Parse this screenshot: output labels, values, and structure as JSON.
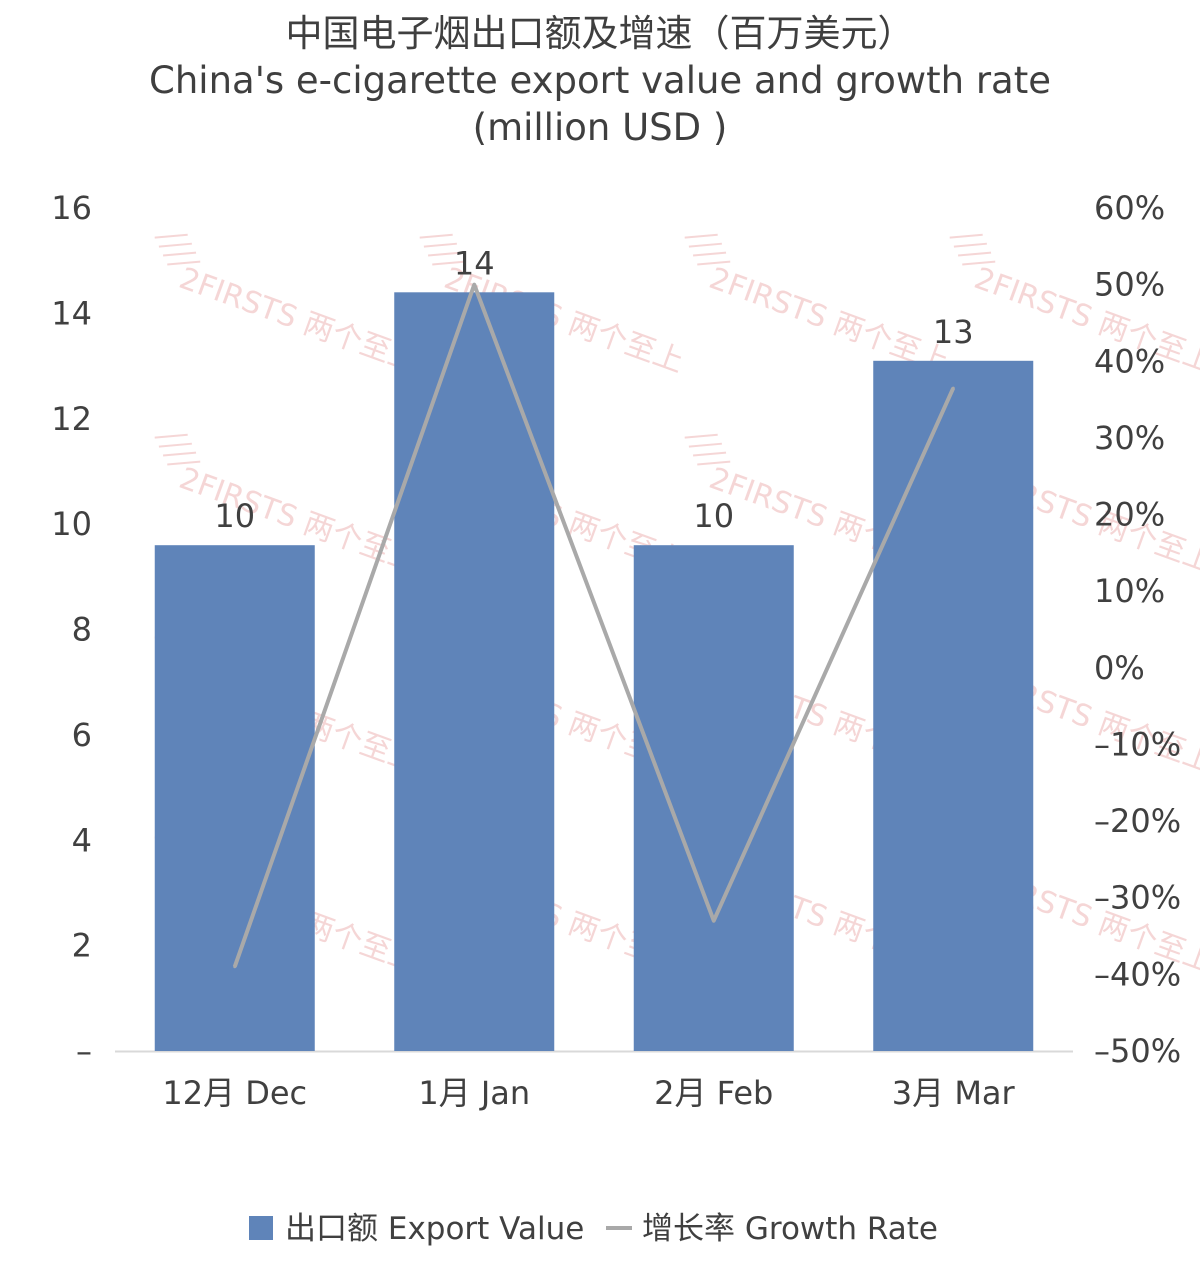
{
  "chart_data": {
    "type": "bar",
    "title_lines": [
      "中国电子烟出口额及增速（百万美元）",
      "China's e-cigarette export value and growth rate",
      "(million USD )"
    ],
    "categories": [
      "12月 Dec",
      "1月 Jan",
      "2月 Feb",
      "3月 Mar"
    ],
    "series": [
      {
        "name": "出口额 Export Value",
        "type": "bar",
        "axis": "left",
        "values": [
          9.6,
          14.4,
          9.6,
          13.1
        ],
        "data_labels": [
          "10",
          "14",
          "10",
          "13"
        ],
        "color": "#5f84b9"
      },
      {
        "name": "增长率 Growth Rate",
        "type": "line",
        "axis": "right",
        "values": [
          -39,
          50,
          -33,
          36.5
        ],
        "color": "#a9a9a9"
      }
    ],
    "y_left": {
      "ylim": [
        0,
        16
      ],
      "ticks": [
        0,
        2,
        4,
        6,
        8,
        10,
        12,
        14,
        16
      ],
      "tick_labels": [
        "–",
        "2",
        "4",
        "6",
        "8",
        "10",
        "12",
        "14",
        "16"
      ]
    },
    "y_right": {
      "ylim": [
        -50,
        60
      ],
      "ticks": [
        -50,
        -40,
        -30,
        -20,
        -10,
        0,
        10,
        20,
        30,
        40,
        50,
        60
      ],
      "tick_labels": [
        "–50%",
        "–40%",
        "–30%",
        "–20%",
        "–10%",
        "0%",
        "10%",
        "20%",
        "30%",
        "40%",
        "50%",
        "60%"
      ]
    },
    "grid": false,
    "legend_position": "bottom",
    "watermark": "2FIRSTS 两个至上"
  }
}
